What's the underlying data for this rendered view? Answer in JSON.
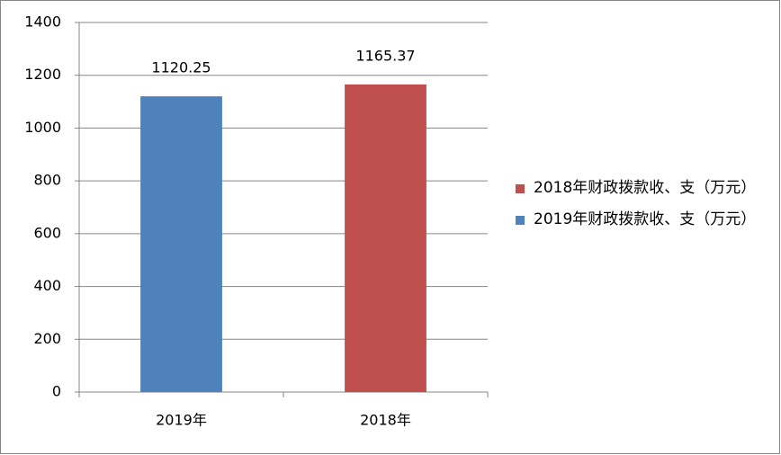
{
  "chart_data": {
    "type": "bar",
    "categories": [
      "2019年",
      "2018年"
    ],
    "series": [
      {
        "name": "2018年财政拨款收、支（万元）",
        "color": "#c0504d",
        "values": [
          null,
          1165.37
        ]
      },
      {
        "name": "2019年财政拨款收、支（万元）",
        "color": "#4f81bd",
        "values": [
          1120.25,
          null
        ]
      }
    ],
    "ylim": [
      0,
      1400
    ],
    "yticks": [
      0,
      200,
      400,
      600,
      800,
      1000,
      1200,
      1400
    ],
    "grid": true,
    "legend": "right"
  }
}
